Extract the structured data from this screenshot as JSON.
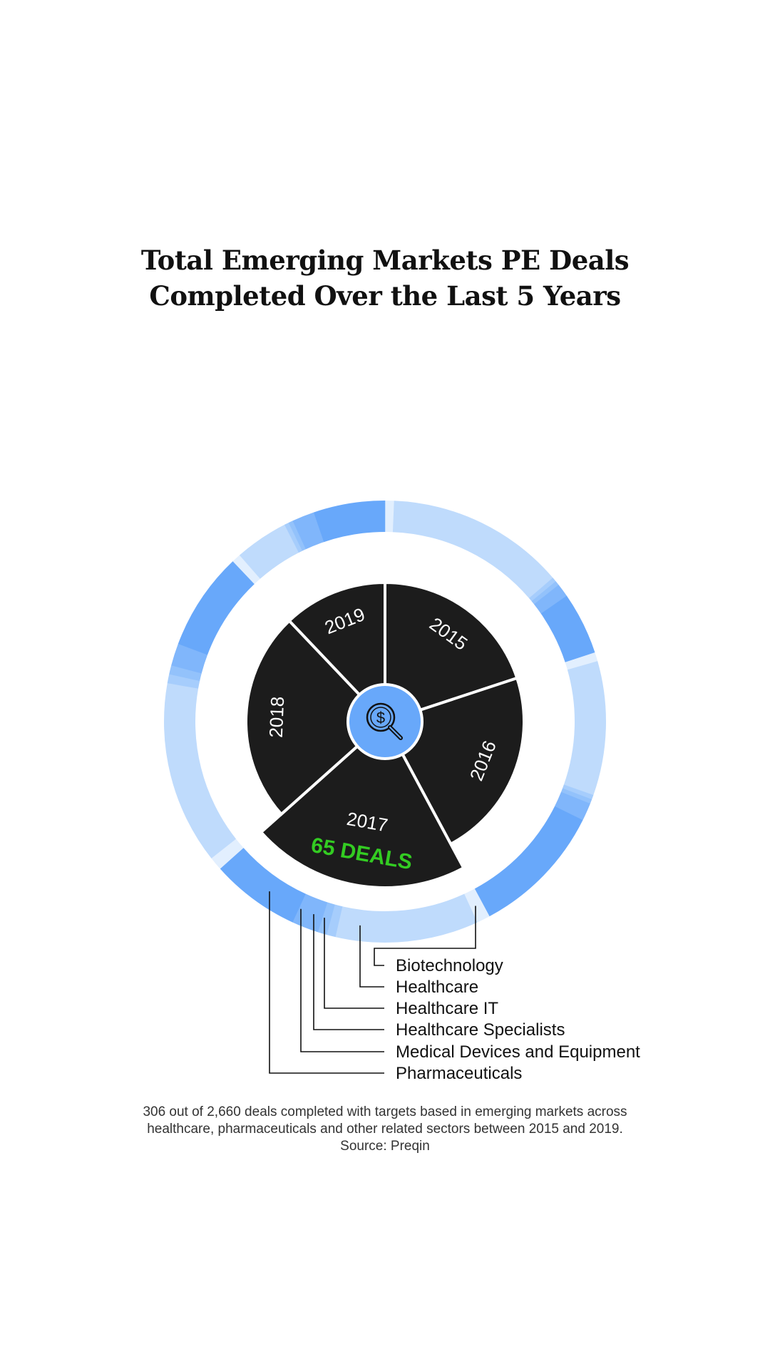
{
  "title": {
    "line1": "Total Emerging Markets PE Deals",
    "line2": "Completed Over the Last 5 Years"
  },
  "chart_data": {
    "type": "pie",
    "title": "Total Emerging Markets PE Deals Completed Over the Last 5 Years",
    "center_icon": "dollar-magnifier-icon",
    "total_deals": 306,
    "years": [
      {
        "label": "2015",
        "value": 61
      },
      {
        "label": "2016",
        "value": 68
      },
      {
        "label": "2017",
        "value": 65,
        "highlighted": true,
        "callout": "65 DEALS"
      },
      {
        "label": "2018",
        "value": 75
      },
      {
        "label": "2019",
        "value": 37
      }
    ],
    "sectors": [
      {
        "name": "Biotechnology",
        "color": "#e2effe"
      },
      {
        "name": "Healthcare",
        "color": "#bfdbfc"
      },
      {
        "name": "Healthcare IT",
        "color": "#a6cdfc"
      },
      {
        "name": "Healthcare Specialists",
        "color": "#93c2fb"
      },
      {
        "name": "Medical Devices and Equipment",
        "color": "#80b6fb"
      },
      {
        "name": "Pharmaceuticals",
        "color": "#68a8fa"
      }
    ],
    "sector_values_by_year": {
      "2015": [
        2,
        40,
        1,
        1,
        3,
        14
      ],
      "2016": [
        2,
        30,
        1,
        1,
        4,
        30
      ],
      "2017": [
        3,
        32,
        2,
        2,
        6,
        20
      ],
      "2018": [
        3,
        41,
        2,
        2,
        5,
        22
      ],
      "2019": [
        2,
        12,
        1,
        1,
        5,
        16
      ]
    },
    "colors": {
      "pie": "#1c1c1c",
      "center": "#68a8fa",
      "callout": "#33cc22"
    }
  },
  "caption": {
    "line1": "306 out of 2,660 deals completed with targets based in emerging markets across",
    "line2": "healthcare, pharmaceuticals and other related sectors between 2015 and 2019.",
    "source": "Source: Preqin"
  }
}
